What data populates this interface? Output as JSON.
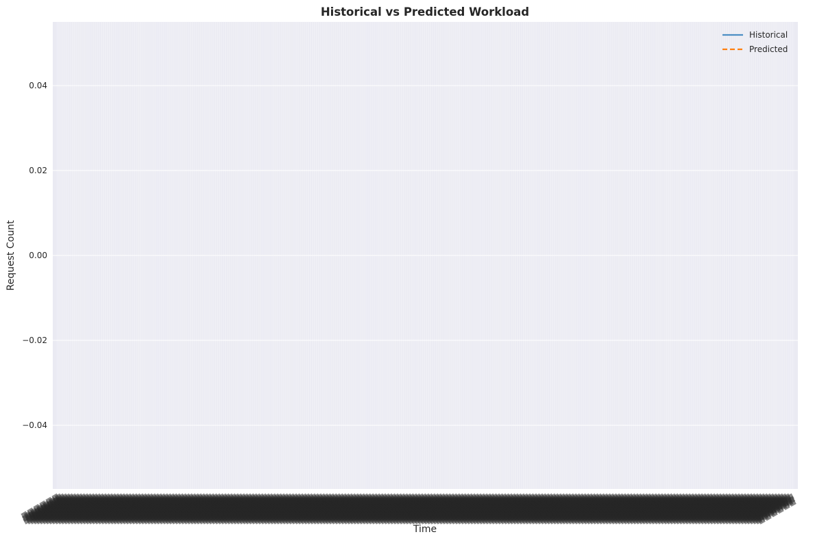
{
  "chart_data": {
    "type": "line",
    "title": "Historical vs Predicted Workload",
    "xlabel": "Time",
    "ylabel": "Request Count",
    "ylim": [
      -0.055,
      0.055
    ],
    "yticks": [
      {
        "value": 0.04,
        "label": "0.04"
      },
      {
        "value": 0.02,
        "label": "0.02"
      },
      {
        "value": 0.0,
        "label": "0.00"
      },
      {
        "value": -0.02,
        "label": "−0.02"
      },
      {
        "value": -0.04,
        "label": "−0.04"
      }
    ],
    "grid": true,
    "legend_position": "top-right",
    "series": [
      {
        "name": "Historical",
        "color": "#4c8ec4",
        "style": "solid",
        "values": []
      },
      {
        "name": "Predicted",
        "color": "#ff7f0e",
        "style": "dashed",
        "values": []
      }
    ],
    "x_tick_count": 720,
    "x_tick_labels_legible": false
  },
  "colors": {
    "plot_background": "#eaeaf2",
    "grid": "#ffffff",
    "text": "#262626"
  }
}
